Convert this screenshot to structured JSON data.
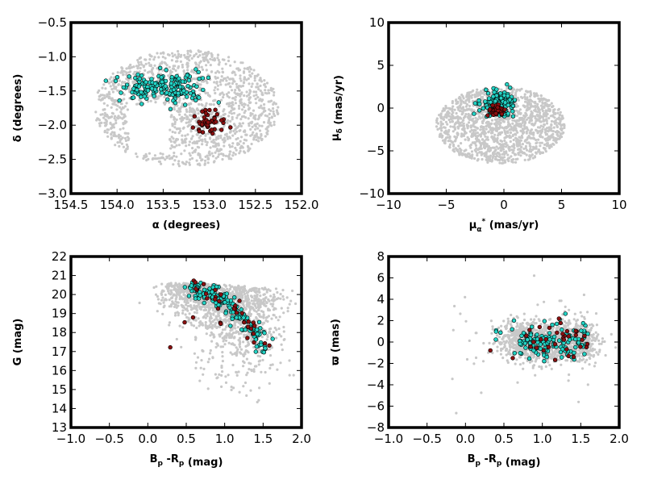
{
  "colors": {
    "field": "#c8c8c8",
    "cyan": "#22d3c5",
    "red": "#8b1010",
    "edge": "#000000"
  },
  "chart_data": [
    {
      "type": "scatter",
      "xlim": [
        154.5,
        152.0
      ],
      "ylim": [
        -3.0,
        -0.5
      ],
      "x_ticks": [
        154.5,
        154.0,
        153.5,
        153.0,
        152.5,
        152.0
      ],
      "x_tick_labels": [
        "154.5",
        "154.0",
        "153.5",
        "153.0",
        "152.5",
        "152.0"
      ],
      "y_ticks": [
        -3.0,
        -2.5,
        -2.0,
        -1.5,
        -1.0,
        -0.5
      ],
      "y_tick_labels": [
        "−3.0",
        "−2.5",
        "−2.0",
        "−1.5",
        "−1.0",
        "−0.5"
      ],
      "xlabel": {
        "main": "α (degrees)"
      },
      "ylabel": {
        "main": "δ (degrees)"
      },
      "field": {
        "kind": "ellipse",
        "cx": 153.25,
        "cy": -1.75,
        "rx": 1.0,
        "ry": 0.85,
        "n": 1400,
        "gap": [
          [
            153.65,
            -2.05,
            0.22,
            0.35
          ]
        ]
      },
      "groups": [
        {
          "color": "cyan",
          "n": 170,
          "blobs": [
            [
              153.35,
              -1.45,
              0.14,
              0.12,
              0.6
            ],
            [
              153.7,
              -1.45,
              0.12,
              0.08,
              0.4
            ]
          ]
        },
        {
          "color": "red",
          "n": 45,
          "blobs": [
            [
              152.98,
              -1.95,
              0.08,
              0.1,
              1.0
            ]
          ]
        }
      ]
    },
    {
      "type": "scatter",
      "xlim": [
        -10,
        10
      ],
      "ylim": [
        -10,
        10
      ],
      "x_ticks": [
        -10,
        -5,
        0,
        5,
        10
      ],
      "x_tick_labels": [
        "−10",
        "−5",
        "0",
        "5",
        "10"
      ],
      "y_ticks": [
        -10,
        -5,
        0,
        5,
        10
      ],
      "y_tick_labels": [
        "−10",
        "−5",
        "0",
        "5",
        "10"
      ],
      "xlabel": {
        "main": "μ",
        "sub": "α",
        "sup": "*",
        "tail": "  (mas/yr)"
      },
      "ylabel": {
        "main": "μ",
        "sub": "δ",
        "tail": "  (mas/yr)"
      },
      "field": {
        "kind": "ellipse",
        "cx": -0.3,
        "cy": -2.0,
        "rx": 5.6,
        "ry": 4.5,
        "n": 1500,
        "gap": []
      },
      "groups": [
        {
          "color": "cyan",
          "n": 150,
          "blobs": [
            [
              -0.5,
              0.4,
              0.75,
              0.8,
              1.0
            ]
          ]
        },
        {
          "color": "red",
          "n": 40,
          "blobs": [
            [
              -0.6,
              -0.2,
              0.4,
              0.4,
              1.0
            ]
          ]
        }
      ]
    },
    {
      "type": "scatter",
      "xlim": [
        -1.0,
        2.0
      ],
      "ylim": [
        13,
        22
      ],
      "x_ticks": [
        -1.0,
        -0.5,
        0.0,
        0.5,
        1.0,
        1.5,
        2.0
      ],
      "x_tick_labels": [
        "−1.0",
        "−0.5",
        "0.0",
        "0.5",
        "1.0",
        "1.5",
        "2.0"
      ],
      "y_ticks": [
        13,
        14,
        15,
        16,
        17,
        18,
        19,
        20,
        21,
        22
      ],
      "y_tick_labels": [
        "13",
        "14",
        "15",
        "16",
        "17",
        "18",
        "19",
        "20",
        "21",
        "22"
      ],
      "xlabel": {
        "main": "B",
        "sub": "p",
        "mid": " -R",
        "sub2": "p",
        "tail": "  (mag)"
      },
      "ylabel": {
        "main": "G (mag)"
      },
      "field": {
        "kind": "cmd",
        "n": 1400
      },
      "groups": [
        {
          "color": "cyan",
          "n": 160,
          "kind": "cmdseq"
        },
        {
          "color": "red",
          "n": 35,
          "kind": "cmdseq"
        }
      ]
    },
    {
      "type": "scatter",
      "xlim": [
        -1.0,
        2.0
      ],
      "ylim": [
        -8,
        8
      ],
      "x_ticks": [
        -1.0,
        -0.5,
        0.0,
        0.5,
        1.0,
        1.5,
        2.0
      ],
      "x_tick_labels": [
        "−1.0",
        "−0.5",
        "0.0",
        "0.5",
        "1.0",
        "1.5",
        "2.0"
      ],
      "y_ticks": [
        -8,
        -6,
        -4,
        -2,
        0,
        2,
        4,
        6,
        8
      ],
      "y_tick_labels": [
        "−8",
        "−6",
        "−4",
        "−2",
        "0",
        "2",
        "4",
        "6",
        "8"
      ],
      "xlabel": {
        "main": "B",
        "sub": "p",
        "mid": " -R",
        "sub2": "p",
        "tail": "  (mag)"
      },
      "ylabel": {
        "main": "ϖ (mas)"
      },
      "field": {
        "kind": "plx",
        "n": 1400
      },
      "groups": [
        {
          "color": "cyan",
          "n": 140,
          "kind": "plx"
        },
        {
          "color": "red",
          "n": 35,
          "kind": "plx"
        }
      ]
    }
  ]
}
